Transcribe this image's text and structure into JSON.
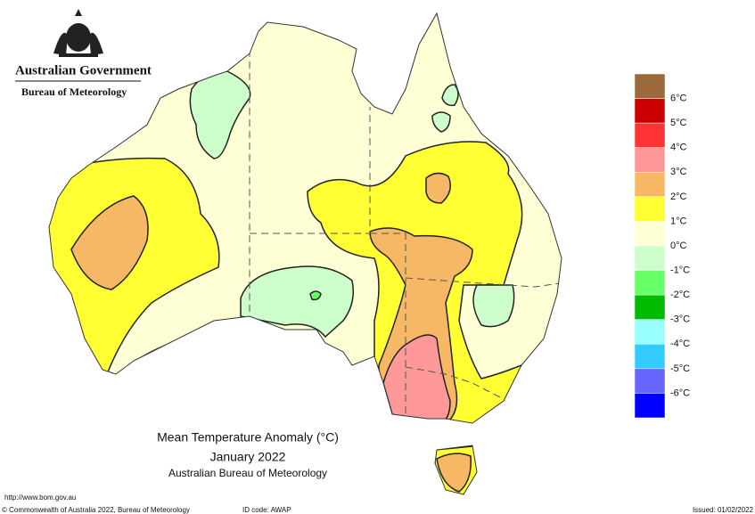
{
  "header": {
    "government": "Australian Government",
    "bureau": "Bureau of Meteorology"
  },
  "map": {
    "title": "Mean Temperature Anomaly (°C)",
    "period": "January 2022",
    "source": "Australian Bureau of Meteorology"
  },
  "legend": {
    "colors": [
      "#9a6a3a",
      "#cc0000",
      "#ff3333",
      "#ff9999",
      "#f7b866",
      "#ffff33",
      "#ffffd6",
      "#ccffcc",
      "#66ff66",
      "#00bb00",
      "#99ffff",
      "#33ccff",
      "#6666ff",
      "#0000ff"
    ],
    "labels": [
      "6°C",
      "5°C",
      "4°C",
      "3°C",
      "2°C",
      "1°C",
      "0°C",
      "-1°C",
      "-2°C",
      "-3°C",
      "-4°C",
      "-5°C",
      "-6°C"
    ]
  },
  "footer": {
    "url": "http://www.bom.gov.au",
    "copyright": "© Commonwealth of Australia 2022, Bureau of Meteorology",
    "id_code": "ID code: AWAP",
    "issued": "Issued: 01/02/2022"
  }
}
